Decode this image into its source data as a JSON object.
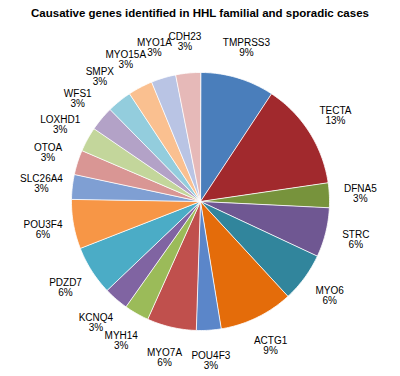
{
  "chart_data": {
    "type": "pie",
    "title": "Causative genes identified in HHL familial and sporadic cases",
    "categories": [
      "TMPRSS3",
      "TECTA",
      "DFNA5",
      "STRC",
      "MYO6",
      "ACTG1",
      "POU4F3",
      "MYO7A",
      "MYH14",
      "KCNQ4",
      "PDZD7",
      "POU3F4",
      "SLC26A4",
      "OTOA",
      "LOXHD1",
      "WFS1",
      "SMPX",
      "MYO15A",
      "MYO1A",
      "CDH23"
    ],
    "values": [
      9,
      13,
      3,
      6,
      6,
      9,
      3,
      6,
      3,
      3,
      6,
      6,
      3,
      3,
      3,
      3,
      3,
      3,
      3,
      3
    ],
    "value_labels": [
      "9%",
      "13%",
      "3%",
      "6%",
      "6%",
      "9%",
      "3%",
      "6%",
      "3%",
      "3%",
      "6%",
      "6%",
      "3%",
      "3%",
      "3%",
      "3%",
      "3%",
      "3%",
      "3%",
      "3%"
    ],
    "colors": [
      "#4a7ebb",
      "#a1292d",
      "#77933c",
      "#6f5792",
      "#31859c",
      "#e46c0a",
      "#5b86c9",
      "#c0504d",
      "#9bbb59",
      "#8064a2",
      "#4bacc6",
      "#f79646",
      "#7f9fd3",
      "#d99694",
      "#c3d69b",
      "#b3a2c7",
      "#93cddd",
      "#fac090",
      "#b9c4e4",
      "#e6b9b8"
    ],
    "data_labels": true
  }
}
